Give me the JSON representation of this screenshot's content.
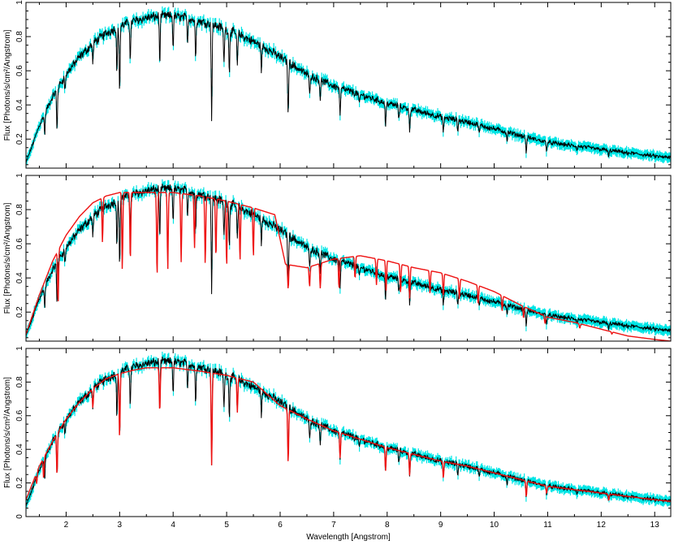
{
  "chart_data": {
    "type": "line",
    "xlabel": "Wavelength [Angstrom]",
    "ylabel": "Flux [Photons/s/cm²/Angstrom]",
    "xlim": [
      1.25,
      13.3
    ],
    "x_ticks": [
      2,
      3,
      4,
      5,
      6,
      7,
      8,
      9,
      10,
      11,
      12,
      13
    ],
    "colors": {
      "error": "#00e5e5",
      "data": "#000000",
      "model": "#ee1111"
    },
    "continuum_knots": [
      [
        1.25,
        0.06
      ],
      [
        1.5,
        0.28
      ],
      [
        1.75,
        0.45
      ],
      [
        2.0,
        0.58
      ],
      [
        2.25,
        0.68
      ],
      [
        2.5,
        0.76
      ],
      [
        2.75,
        0.82
      ],
      [
        3.0,
        0.86
      ],
      [
        3.25,
        0.89
      ],
      [
        3.5,
        0.91
      ],
      [
        3.75,
        0.92
      ],
      [
        4.0,
        0.92
      ],
      [
        4.25,
        0.91
      ],
      [
        4.5,
        0.89
      ],
      [
        4.75,
        0.87
      ],
      [
        5.0,
        0.84
      ],
      [
        5.25,
        0.81
      ],
      [
        5.5,
        0.77
      ],
      [
        5.75,
        0.73
      ],
      [
        6.0,
        0.68
      ],
      [
        6.5,
        0.58
      ],
      [
        7.0,
        0.51
      ],
      [
        7.5,
        0.46
      ],
      [
        8.0,
        0.41
      ],
      [
        8.5,
        0.37
      ],
      [
        9.0,
        0.33
      ],
      [
        9.5,
        0.3
      ],
      [
        10.0,
        0.26
      ],
      [
        10.5,
        0.22
      ],
      [
        11.0,
        0.18
      ],
      [
        11.5,
        0.16
      ],
      [
        12.0,
        0.14
      ],
      [
        12.5,
        0.12
      ],
      [
        13.0,
        0.1
      ],
      [
        13.3,
        0.09
      ]
    ],
    "absorption_lines": [
      [
        1.6,
        0.35
      ],
      [
        1.83,
        0.5
      ],
      [
        1.98,
        0.15
      ],
      [
        2.5,
        0.15
      ],
      [
        2.95,
        0.3
      ],
      [
        3.0,
        0.45
      ],
      [
        3.2,
        0.25
      ],
      [
        3.75,
        0.3
      ],
      [
        4.0,
        0.2
      ],
      [
        4.27,
        0.15
      ],
      [
        4.42,
        0.25
      ],
      [
        4.72,
        0.65
      ],
      [
        4.95,
        0.25
      ],
      [
        5.05,
        0.3
      ],
      [
        5.2,
        0.25
      ],
      [
        5.65,
        0.2
      ],
      [
        6.15,
        0.5
      ],
      [
        6.55,
        0.2
      ],
      [
        6.75,
        0.2
      ],
      [
        7.12,
        0.35
      ],
      [
        7.48,
        0.15
      ],
      [
        7.97,
        0.35
      ],
      [
        8.22,
        0.2
      ],
      [
        8.42,
        0.35
      ],
      [
        9.05,
        0.3
      ],
      [
        9.32,
        0.2
      ],
      [
        9.72,
        0.2
      ],
      [
        10.24,
        0.2
      ],
      [
        10.6,
        0.45
      ],
      [
        10.98,
        0.25
      ],
      [
        11.55,
        0.15
      ],
      [
        12.14,
        0.3
      ],
      [
        12.5,
        0.1
      ]
    ],
    "panels": [
      {
        "ylim": [
          0.03,
          1.0
        ],
        "y_ticks": [
          0.2,
          0.4,
          0.6,
          0.8,
          1
        ],
        "y_tick_labels": [
          "0.2",
          "0.4",
          "0.6",
          "0.8",
          "1"
        ],
        "show_x_tick_labels": false,
        "model": null
      },
      {
        "ylim": [
          0.03,
          1.0
        ],
        "y_ticks": [
          0.2,
          0.4,
          0.6,
          0.8,
          1
        ],
        "y_tick_labels": [
          "0.2",
          "0.4",
          "0.6",
          "0.8",
          "1"
        ],
        "show_x_tick_labels": false,
        "model": {
          "knots": [
            [
              1.25,
              0.07
            ],
            [
              1.5,
              0.3
            ],
            [
              1.75,
              0.5
            ],
            [
              2.0,
              0.65
            ],
            [
              2.25,
              0.76
            ],
            [
              2.5,
              0.84
            ],
            [
              2.75,
              0.88
            ],
            [
              3.0,
              0.9
            ],
            [
              3.5,
              0.9
            ],
            [
              4.0,
              0.9
            ],
            [
              4.5,
              0.88
            ],
            [
              5.0,
              0.85
            ],
            [
              5.5,
              0.81
            ],
            [
              5.9,
              0.77
            ],
            [
              6.1,
              0.48
            ],
            [
              6.5,
              0.46
            ],
            [
              7.0,
              0.51
            ],
            [
              7.5,
              0.53
            ],
            [
              8.0,
              0.5
            ],
            [
              8.5,
              0.46
            ],
            [
              9.0,
              0.43
            ],
            [
              9.5,
              0.38
            ],
            [
              10.0,
              0.32
            ],
            [
              10.5,
              0.24
            ],
            [
              11.0,
              0.17
            ],
            [
              11.5,
              0.14
            ],
            [
              12.0,
              0.1
            ],
            [
              12.5,
              0.06
            ],
            [
              13.0,
              0.04
            ],
            [
              13.3,
              0.03
            ]
          ],
          "lines": [
            [
              1.85,
              0.55
            ],
            [
              2.68,
              0.3
            ],
            [
              3.05,
              0.5
            ],
            [
              3.2,
              0.45
            ],
            [
              3.7,
              0.55
            ],
            [
              3.9,
              0.5
            ],
            [
              4.15,
              0.45
            ],
            [
              4.4,
              0.35
            ],
            [
              4.6,
              0.45
            ],
            [
              4.8,
              0.4
            ],
            [
              5.0,
              0.45
            ],
            [
              5.25,
              0.4
            ],
            [
              5.5,
              0.35
            ],
            [
              6.15,
              0.3
            ],
            [
              6.55,
              0.25
            ],
            [
              6.75,
              0.3
            ],
            [
              7.1,
              0.35
            ],
            [
              7.4,
              0.25
            ],
            [
              7.8,
              0.3
            ],
            [
              7.98,
              0.35
            ],
            [
              8.25,
              0.35
            ],
            [
              8.42,
              0.4
            ],
            [
              8.8,
              0.3
            ],
            [
              9.05,
              0.3
            ],
            [
              9.35,
              0.3
            ],
            [
              9.7,
              0.3
            ],
            [
              10.15,
              0.3
            ],
            [
              10.55,
              0.3
            ],
            [
              10.95,
              0.25
            ],
            [
              11.6,
              0.2
            ],
            [
              12.2,
              0.15
            ]
          ]
        }
      },
      {
        "ylim": [
          0.0,
          1.0
        ],
        "y_ticks": [
          0,
          0.2,
          0.4,
          0.6,
          0.8,
          1
        ],
        "y_tick_labels": [
          "0",
          "0.2",
          "0.4",
          "0.6",
          "0.8",
          "1"
        ],
        "show_x_tick_labels": true,
        "model": {
          "knots": [
            [
              1.25,
              0.1
            ],
            [
              1.5,
              0.3
            ],
            [
              1.75,
              0.45
            ],
            [
              2.0,
              0.58
            ],
            [
              2.25,
              0.68
            ],
            [
              2.5,
              0.76
            ],
            [
              2.75,
              0.82
            ],
            [
              3.0,
              0.85
            ],
            [
              3.25,
              0.87
            ],
            [
              3.5,
              0.885
            ],
            [
              4.0,
              0.885
            ],
            [
              4.5,
              0.865
            ],
            [
              5.0,
              0.84
            ],
            [
              5.5,
              0.8
            ],
            [
              6.0,
              0.66
            ],
            [
              6.5,
              0.58
            ],
            [
              7.0,
              0.51
            ],
            [
              7.5,
              0.46
            ],
            [
              8.0,
              0.41
            ],
            [
              8.5,
              0.37
            ],
            [
              9.0,
              0.33
            ],
            [
              9.5,
              0.3
            ],
            [
              10.0,
              0.26
            ],
            [
              10.5,
              0.22
            ],
            [
              11.0,
              0.18
            ],
            [
              11.5,
              0.16
            ],
            [
              12.0,
              0.14
            ],
            [
              12.5,
              0.12
            ],
            [
              13.0,
              0.1
            ],
            [
              13.3,
              0.09
            ]
          ],
          "lines": [
            [
              1.45,
              0.25
            ],
            [
              1.58,
              0.35
            ],
            [
              1.83,
              0.5
            ],
            [
              2.5,
              0.15
            ],
            [
              3.0,
              0.45
            ],
            [
              3.75,
              0.3
            ],
            [
              4.72,
              0.65
            ],
            [
              5.2,
              0.25
            ],
            [
              6.15,
              0.5
            ],
            [
              7.12,
              0.3
            ],
            [
              7.97,
              0.35
            ],
            [
              8.42,
              0.35
            ],
            [
              9.05,
              0.3
            ],
            [
              10.6,
              0.45
            ],
            [
              10.98,
              0.25
            ],
            [
              12.14,
              0.3
            ]
          ]
        }
      }
    ]
  }
}
